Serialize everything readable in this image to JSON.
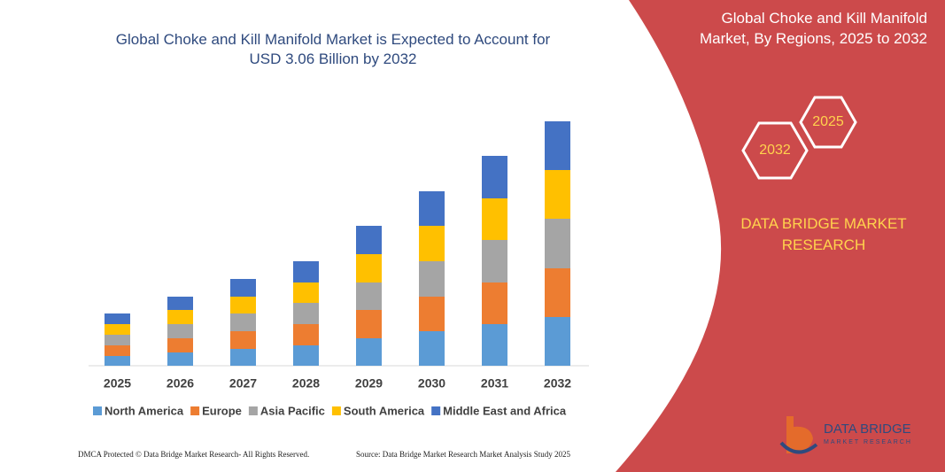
{
  "chart_data": {
    "type": "bar",
    "stacked": true,
    "title": "Global Choke and Kill Manifold Market is Expected to Account for USD 3.06 Billion by 2032",
    "categories": [
      "2025",
      "2026",
      "2027",
      "2028",
      "2029",
      "2030",
      "2031",
      "2032"
    ],
    "series": [
      {
        "name": "North America",
        "color": "#5b9bd5",
        "values": [
          11,
          15,
          19,
          23,
          31,
          39,
          47,
          55
        ]
      },
      {
        "name": "Europe",
        "color": "#ed7d31",
        "values": [
          12,
          16,
          20,
          24,
          32,
          39,
          47,
          55
        ]
      },
      {
        "name": "Asia Pacific",
        "color": "#a5a5a5",
        "values": [
          12,
          16,
          20,
          24,
          31,
          40,
          48,
          56
        ]
      },
      {
        "name": "South America",
        "color": "#ffc000",
        "values": [
          12,
          16,
          19,
          23,
          32,
          40,
          47,
          55
        ]
      },
      {
        "name": "Middle East and Africa",
        "color": "#4472c4",
        "values": [
          12,
          15,
          20,
          24,
          32,
          39,
          48,
          55
        ]
      }
    ],
    "ylim": [
      0,
      290
    ]
  },
  "banner": {
    "title": "Global Choke and Kill Manifold Market, By Regions, 2025 to 2032",
    "hexagons": [
      "2025",
      "2032"
    ],
    "brand": "DATA BRIDGE MARKET RESEARCH"
  },
  "logo": {
    "name": "DATA BRIDGE",
    "tagline": "MARKET RESEARCH"
  },
  "footer": {
    "left": "DMCA Protected © Data Bridge Market Research- All Rights Reserved.",
    "right": "Source: Data Bridge Market Research Market Analysis Study 2025"
  }
}
